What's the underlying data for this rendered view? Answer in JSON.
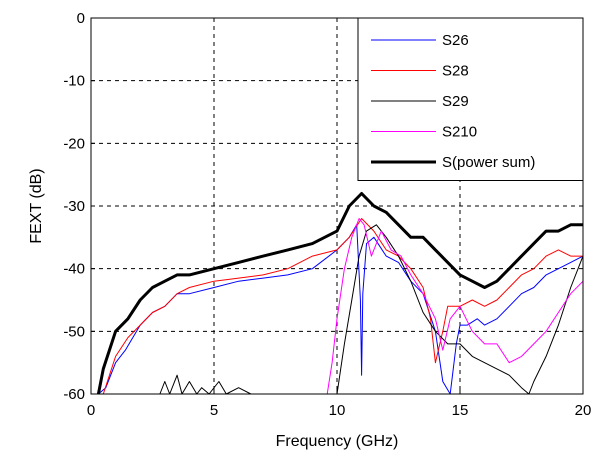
{
  "chart_data": {
    "type": "line",
    "xlabel": "Frequency (GHz)",
    "ylabel": "FEXT (dB)",
    "xlim": [
      0,
      20
    ],
    "ylim": [
      -60,
      0
    ],
    "xticks": [
      "0",
      "5",
      "10",
      "15",
      "20"
    ],
    "yticks": [
      "0",
      "-10",
      "-20",
      "-30",
      "-40",
      "-50",
      "-60"
    ],
    "grid": true,
    "grid_style": "dashed",
    "legend_position": "top-right",
    "series": [
      {
        "name": "S26",
        "color": "#0000ff",
        "width": 1,
        "x": [
          0.3,
          0.6,
          1.0,
          1.4,
          2.0,
          2.5,
          3.0,
          3.5,
          4.0,
          5.0,
          6.0,
          7.0,
          8.0,
          9.0,
          10.0,
          10.5,
          10.8,
          10.95,
          11.0,
          11.05,
          11.2,
          11.5,
          12.0,
          12.5,
          13.0,
          13.5,
          14.0,
          14.3,
          14.6,
          14.85,
          15.0,
          15.3,
          15.7,
          16.0,
          16.5,
          17.0,
          17.5,
          18.0,
          18.5,
          19.0,
          19.5,
          20.0
        ],
        "y": [
          -60,
          -59,
          -55,
          -53,
          -49,
          -47,
          -46,
          -44,
          -44,
          -43,
          -42,
          -41.5,
          -41,
          -40,
          -37,
          -35,
          -33,
          -45,
          -57,
          -44,
          -36,
          -35,
          -38,
          -39,
          -42,
          -44,
          -50,
          -58,
          -60,
          -52,
          -49,
          -49,
          -48,
          -49,
          -48,
          -46,
          -44,
          -43,
          -41,
          -40,
          -39,
          -38
        ]
      },
      {
        "name": "S28",
        "color": "#ff0000",
        "width": 1,
        "x": [
          0.5,
          1.0,
          1.5,
          2.0,
          2.5,
          3.0,
          3.5,
          4.0,
          5.0,
          6.0,
          7.0,
          8.0,
          9.0,
          10.0,
          10.5,
          11.0,
          11.5,
          12.0,
          12.5,
          13.0,
          13.5,
          13.8,
          14.0,
          14.3,
          14.5,
          15.0,
          15.5,
          16.0,
          16.5,
          17.0,
          17.5,
          18.0,
          18.5,
          19.0,
          19.5,
          20.0
        ],
        "y": [
          -60,
          -54,
          -51,
          -49,
          -47,
          -46,
          -44,
          -43,
          -42,
          -41.5,
          -41,
          -40,
          -38,
          -37,
          -35,
          -32,
          -34,
          -37,
          -38,
          -40,
          -43,
          -48,
          -55,
          -50,
          -46,
          -46,
          -45,
          -46,
          -45,
          -43,
          -41,
          -40,
          -38,
          -37,
          -38,
          -38
        ]
      },
      {
        "name": "S29",
        "color": "#000000",
        "width": 1,
        "x": [
          2.8,
          3.0,
          3.2,
          3.5,
          3.7,
          4.0,
          4.3,
          4.5,
          4.8,
          5.2,
          5.5,
          6.0,
          6.5,
          7.0,
          10.0,
          10.3,
          10.6,
          10.9,
          11.2,
          11.6,
          12.0,
          12.5,
          13.0,
          13.5,
          14.0,
          14.5,
          15.0,
          15.5,
          16.0,
          16.5,
          17.0,
          17.5,
          17.8,
          18.0,
          18.5,
          19.0,
          19.5,
          20.0
        ],
        "y": [
          -60,
          -58,
          -60,
          -57,
          -60,
          -58,
          -60,
          -59,
          -60,
          -58,
          -60,
          -59,
          -60,
          -60,
          -60,
          -52,
          -45,
          -38,
          -34,
          -33,
          -35,
          -38,
          -42,
          -47,
          -50,
          -52,
          -52,
          -54,
          -55,
          -56,
          -57,
          -59,
          -60,
          -58,
          -54,
          -49,
          -43,
          -38
        ]
      },
      {
        "name": "S210",
        "color": "#ff00ff",
        "width": 1,
        "x": [
          9.6,
          9.8,
          10.0,
          10.3,
          10.6,
          10.9,
          11.1,
          11.4,
          11.8,
          12.2,
          12.6,
          13.0,
          13.5,
          14.0,
          14.3,
          14.6,
          15.0,
          15.5,
          16.0,
          16.5,
          17.0,
          17.5,
          18.0,
          18.5,
          19.0,
          19.5,
          20.0
        ],
        "y": [
          -60,
          -55,
          -48,
          -40,
          -35,
          -32,
          -33,
          -38,
          -34,
          -37,
          -38,
          -41,
          -44,
          -48,
          -53,
          -48,
          -46,
          -50,
          -52,
          -52,
          -55,
          -54,
          -52,
          -50,
          -47,
          -44,
          -42
        ]
      },
      {
        "name": "S(power sum)",
        "color": "#000000",
        "width": 3,
        "x": [
          0.3,
          0.5,
          1.0,
          1.5,
          2.0,
          2.5,
          3.0,
          3.5,
          4.0,
          5.0,
          6.0,
          7.0,
          8.0,
          9.0,
          10.0,
          10.5,
          11.0,
          11.5,
          12.0,
          12.5,
          13.0,
          13.5,
          14.0,
          14.5,
          15.0,
          15.5,
          16.0,
          16.5,
          17.0,
          17.5,
          18.0,
          18.5,
          19.0,
          19.5,
          20.0
        ],
        "y": [
          -60,
          -56,
          -50,
          -48,
          -45,
          -43,
          -42,
          -41,
          -41,
          -40,
          -39,
          -38,
          -37,
          -36,
          -34,
          -30,
          -28,
          -30,
          -31,
          -33,
          -35,
          -35,
          -37,
          -39,
          -41,
          -42,
          -43,
          -42,
          -40,
          -38,
          -36,
          -34,
          -34,
          -33,
          -33
        ]
      }
    ]
  }
}
